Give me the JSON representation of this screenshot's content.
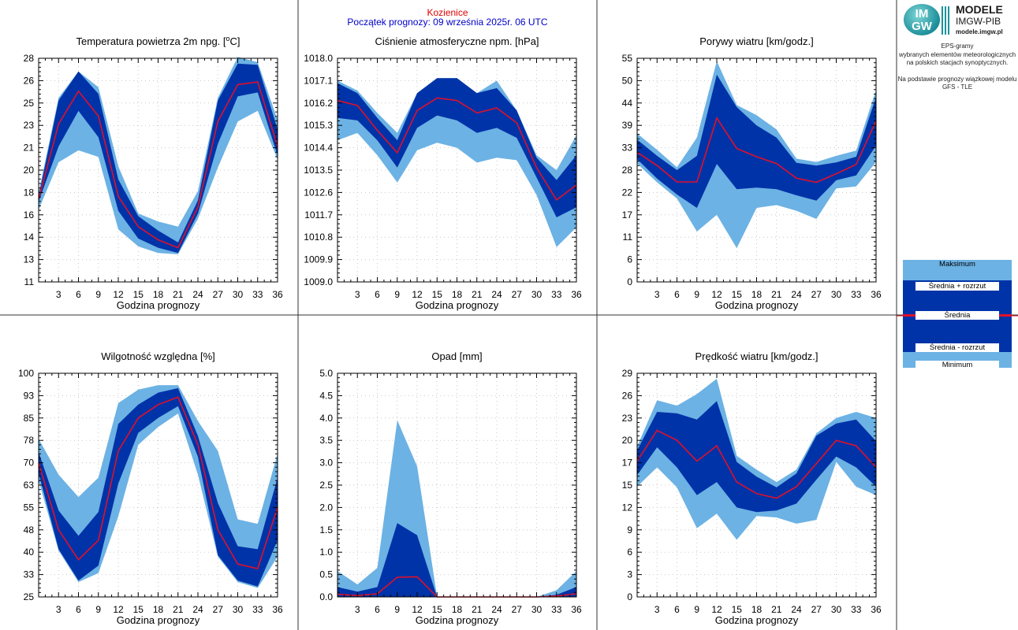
{
  "header": {
    "station": "Kozienice",
    "forecast_start": "Początek prognozy: 09 września 2025r. 06 UTC"
  },
  "logo": {
    "line1": "MODELE",
    "line2": "IMGW-PIB",
    "line3": "modele.imgw.pl",
    "mark_top": "IM",
    "mark_bottom": "GW"
  },
  "side_text": {
    "line1": "EPS-gramy",
    "line2": "wybranych elementów meteorologicznych",
    "line3": "na polskich stacjach  synoptycznych.",
    "line4": "Na podstawie prognozy wiązkowej modelu",
    "line5": "GFS - TLE"
  },
  "legend": {
    "max": "Maksimum",
    "mean_plus": "Średnia + rozrzut",
    "mean": "Średnia",
    "mean_minus": "Średnia - rozrzut",
    "min": "Minimum"
  },
  "colors": {
    "outer_band": "#6cb2e4",
    "inner_band": "#0033a8",
    "mean_line": "#e0102a",
    "header_station": "#e00000",
    "header_start": "#0000c8"
  },
  "chart_data": [
    {
      "type": "area",
      "title": "Temperatura powietrza 2m npg. [oC]",
      "xlabel": "Godzina prognozy",
      "x": [
        0,
        3,
        6,
        9,
        12,
        15,
        18,
        21,
        24,
        27,
        30,
        33,
        36
      ],
      "xticks": [
        3,
        6,
        9,
        12,
        15,
        18,
        21,
        24,
        27,
        30,
        33,
        36
      ],
      "yticks": [
        "11",
        "13",
        "14",
        "16",
        "18",
        "20",
        "21",
        "23",
        "25",
        "26",
        "28"
      ],
      "ylim": [
        11,
        28
      ],
      "series": [
        {
          "name": "Maksimum",
          "values": [
            17.8,
            25.0,
            27.0,
            25.8,
            19.8,
            16.2,
            15.6,
            15.2,
            17.9,
            25.0,
            28.1,
            27.7,
            23.3
          ]
        },
        {
          "name": "Średnia + rozrzut",
          "values": [
            17.5,
            24.8,
            27.0,
            25.3,
            18.8,
            16.0,
            14.9,
            14.0,
            17.2,
            24.8,
            27.6,
            27.5,
            22.6
          ]
        },
        {
          "name": "Średnia",
          "values": [
            17.3,
            23.0,
            25.5,
            23.6,
            17.5,
            15.2,
            14.2,
            13.6,
            16.7,
            23.2,
            26.0,
            26.2,
            21.3
          ]
        },
        {
          "name": "Średnia - rozrzut",
          "values": [
            17.1,
            21.3,
            24.0,
            22.0,
            16.4,
            14.3,
            13.6,
            13.2,
            16.2,
            21.5,
            25.1,
            25.4,
            20.6
          ]
        },
        {
          "name": "Minimum",
          "values": [
            16.5,
            20.1,
            21.0,
            20.5,
            15.0,
            13.7,
            13.2,
            13.1,
            15.8,
            19.7,
            23.2,
            24.0,
            20.3
          ]
        }
      ]
    },
    {
      "type": "area",
      "title": "Ciśnienie atmosferyczne npm. [hPa]",
      "xlabel": "Godzina prognozy",
      "x": [
        0,
        3,
        6,
        9,
        12,
        15,
        18,
        21,
        24,
        27,
        30,
        33,
        36
      ],
      "xticks": [
        3,
        6,
        9,
        12,
        15,
        18,
        21,
        24,
        27,
        30,
        33,
        36
      ],
      "yticks": [
        "1009.0",
        "1009.9",
        "1010.8",
        "1011.7",
        "1012.6",
        "1013.5",
        "1014.4",
        "1015.3",
        "1016.2",
        "1017.1",
        "1018.0"
      ],
      "ylim": [
        1009.0,
        1018.0
      ],
      "series": [
        {
          "name": "Maksimum",
          "values": [
            1017.1,
            1016.7,
            1015.8,
            1015.0,
            1016.6,
            1017.2,
            1017.2,
            1016.6,
            1017.1,
            1015.9,
            1014.1,
            1013.5,
            1014.9
          ]
        },
        {
          "name": "Średnia + rozrzut",
          "values": [
            1017.0,
            1016.6,
            1015.6,
            1014.7,
            1016.6,
            1017.2,
            1017.2,
            1016.6,
            1016.8,
            1015.9,
            1014.0,
            1013.1,
            1014.1
          ]
        },
        {
          "name": "Średnia",
          "values": [
            1016.3,
            1016.1,
            1015.1,
            1014.2,
            1015.9,
            1016.4,
            1016.3,
            1015.8,
            1016.0,
            1015.4,
            1013.6,
            1012.3,
            1012.9
          ]
        },
        {
          "name": "Średnia - rozrzut",
          "values": [
            1015.6,
            1015.5,
            1014.7,
            1013.6,
            1015.2,
            1015.7,
            1015.5,
            1015.0,
            1015.2,
            1014.8,
            1013.2,
            1011.6,
            1012.0
          ]
        },
        {
          "name": "Minimum",
          "values": [
            1014.7,
            1015.0,
            1014.1,
            1013.0,
            1014.3,
            1014.6,
            1014.4,
            1013.8,
            1014.0,
            1013.9,
            1012.5,
            1010.4,
            1011.2
          ]
        }
      ]
    },
    {
      "type": "area",
      "title": "Porywy wiatru [km/godz.]",
      "xlabel": "Godzina prognozy",
      "x": [
        0,
        3,
        6,
        9,
        12,
        15,
        18,
        21,
        24,
        27,
        30,
        33,
        36
      ],
      "xticks": [
        3,
        6,
        9,
        12,
        15,
        18,
        21,
        24,
        27,
        30,
        33,
        36
      ],
      "yticks": [
        "0",
        "6",
        "11",
        "17",
        "22",
        "28",
        "33",
        "39",
        "44",
        "50",
        "55"
      ],
      "ylim": [
        0,
        55
      ],
      "series": [
        {
          "name": "Maksimum",
          "values": [
            36.5,
            32.5,
            28.2,
            35.5,
            54.3,
            43.5,
            41.0,
            37.5,
            30.3,
            29.5,
            31.0,
            32.3,
            47.2
          ]
        },
        {
          "name": "Średnia + rozrzut",
          "values": [
            35.0,
            31.0,
            27.5,
            31.0,
            51.0,
            43.0,
            38.5,
            35.5,
            29.3,
            28.6,
            29.4,
            30.8,
            45.5
          ]
        },
        {
          "name": "Średnia",
          "values": [
            31.9,
            28.6,
            24.6,
            24.6,
            40.3,
            32.8,
            30.8,
            29.1,
            25.5,
            24.5,
            26.6,
            28.9,
            39.6
          ]
        },
        {
          "name": "Średnia - rozrzut",
          "values": [
            30.2,
            25.4,
            21.5,
            18.2,
            29.0,
            22.8,
            23.2,
            22.8,
            21.3,
            20.0,
            25.0,
            26.2,
            33.5
          ]
        },
        {
          "name": "Minimum",
          "values": [
            29.1,
            24.5,
            20.5,
            12.4,
            16.5,
            8.3,
            18.2,
            18.9,
            17.5,
            15.5,
            23.0,
            23.5,
            29.5
          ]
        }
      ]
    },
    {
      "type": "area",
      "title": "Wilgotność względna [%]",
      "xlabel": "Godzina prognozy",
      "x": [
        0,
        3,
        6,
        9,
        12,
        15,
        18,
        21,
        24,
        27,
        30,
        33,
        36
      ],
      "xticks": [
        3,
        6,
        9,
        12,
        15,
        18,
        21,
        24,
        27,
        30,
        33,
        36
      ],
      "yticks": [
        "25",
        "33",
        "40",
        "48",
        "55",
        "63",
        "70",
        "78",
        "85",
        "93",
        "100"
      ],
      "ylim": [
        25,
        100
      ],
      "series": [
        {
          "name": "Maksimum",
          "values": [
            78.0,
            66.0,
            58.5,
            65.0,
            90.0,
            94.5,
            96.0,
            96.0,
            84.0,
            74.0,
            51.0,
            49.5,
            73.0
          ]
        },
        {
          "name": "Średnia + rozrzut",
          "values": [
            73.5,
            54.0,
            45.5,
            53.5,
            83.0,
            89.5,
            93.5,
            95.0,
            79.0,
            56.5,
            42.0,
            41.0,
            65.0
          ]
        },
        {
          "name": "Średnia",
          "values": [
            70.0,
            47.5,
            37.5,
            44.0,
            74.0,
            85.0,
            89.5,
            92.0,
            76.0,
            47.5,
            36.0,
            34.5,
            55.0
          ]
        },
        {
          "name": "Średnia - rozrzut",
          "values": [
            66.5,
            41.0,
            30.5,
            35.5,
            63.0,
            80.0,
            85.0,
            89.0,
            72.0,
            39.0,
            30.5,
            28.5,
            44.0
          ]
        },
        {
          "name": "Minimum",
          "values": [
            64.0,
            40.5,
            30.0,
            33.0,
            52.0,
            76.0,
            82.0,
            86.5,
            66.0,
            38.5,
            30.0,
            28.0,
            38.5
          ]
        }
      ]
    },
    {
      "type": "area",
      "title": "Opad [mm]",
      "xlabel": "Godzina prognozy",
      "x": [
        0,
        3,
        6,
        9,
        12,
        15,
        18,
        21,
        24,
        27,
        30,
        33,
        36
      ],
      "xticks": [
        3,
        6,
        9,
        12,
        15,
        18,
        21,
        24,
        27,
        30,
        33,
        36
      ],
      "yticks": [
        "0.0",
        "0.5",
        "1.0",
        "1.5",
        "2.0",
        "2.5",
        "3.0",
        "3.5",
        "4.0",
        "4.5",
        "5.0"
      ],
      "ylim": [
        0,
        5
      ],
      "series": [
        {
          "name": "Maksimum",
          "values": [
            0.58,
            0.28,
            0.65,
            3.95,
            2.92,
            0.0,
            0.0,
            0.0,
            0.0,
            0.0,
            0.0,
            0.15,
            0.58
          ]
        },
        {
          "name": "Średnia + rozrzut",
          "values": [
            0.22,
            0.12,
            0.22,
            1.65,
            1.38,
            0.0,
            0.0,
            0.0,
            0.0,
            0.0,
            0.0,
            0.05,
            0.22
          ]
        },
        {
          "name": "Średnia",
          "values": [
            0.06,
            0.03,
            0.07,
            0.44,
            0.45,
            0.0,
            0.0,
            0.0,
            0.0,
            0.0,
            0.0,
            0.02,
            0.07
          ]
        },
        {
          "name": "Średnia - rozrzut",
          "values": [
            0.0,
            0.0,
            0.0,
            0.0,
            0.0,
            0.0,
            0.0,
            0.0,
            0.0,
            0.0,
            0.0,
            0.0,
            0.0
          ]
        },
        {
          "name": "Minimum",
          "values": [
            0.0,
            0.0,
            0.0,
            0.0,
            0.0,
            0.0,
            0.0,
            0.0,
            0.0,
            0.0,
            0.0,
            0.0,
            0.0
          ]
        }
      ]
    },
    {
      "type": "area",
      "title": "Prędkość wiatru [km/godz.]",
      "xlabel": "Godzina prognozy",
      "x": [
        0,
        3,
        6,
        9,
        12,
        15,
        18,
        21,
        24,
        27,
        30,
        33,
        36
      ],
      "xticks": [
        3,
        6,
        9,
        12,
        15,
        18,
        21,
        24,
        27,
        30,
        33,
        36
      ],
      "yticks": [
        "0",
        "3",
        "6",
        "9",
        "12",
        "15",
        "17",
        "20",
        "23",
        "26",
        "29"
      ],
      "ylim": [
        0,
        29
      ],
      "series": [
        {
          "name": "Maksimum",
          "values": [
            19.5,
            25.5,
            24.8,
            26.3,
            28.3,
            18.3,
            16.5,
            14.9,
            16.5,
            21.2,
            23.2,
            24.0,
            23.2
          ]
        },
        {
          "name": "Średnia + rozrzut",
          "values": [
            19.0,
            24.0,
            23.8,
            23.0,
            25.4,
            17.5,
            15.6,
            14.2,
            16.0,
            20.9,
            22.5,
            23.0,
            20.2
          ]
        },
        {
          "name": "Średnia",
          "values": [
            17.6,
            21.6,
            20.3,
            17.6,
            19.6,
            14.9,
            13.4,
            12.8,
            14.3,
            17.3,
            20.3,
            19.6,
            16.8
          ]
        },
        {
          "name": "Średnia - rozrzut",
          "values": [
            15.8,
            19.4,
            16.8,
            13.2,
            14.9,
            11.6,
            11.0,
            11.2,
            12.1,
            15.2,
            18.2,
            16.8,
            14.3
          ]
        },
        {
          "name": "Minimum",
          "values": [
            14.3,
            16.8,
            14.2,
            8.9,
            10.8,
            7.4,
            10.5,
            10.3,
            9.5,
            10.0,
            17.5,
            14.3,
            13.2
          ]
        }
      ]
    }
  ]
}
